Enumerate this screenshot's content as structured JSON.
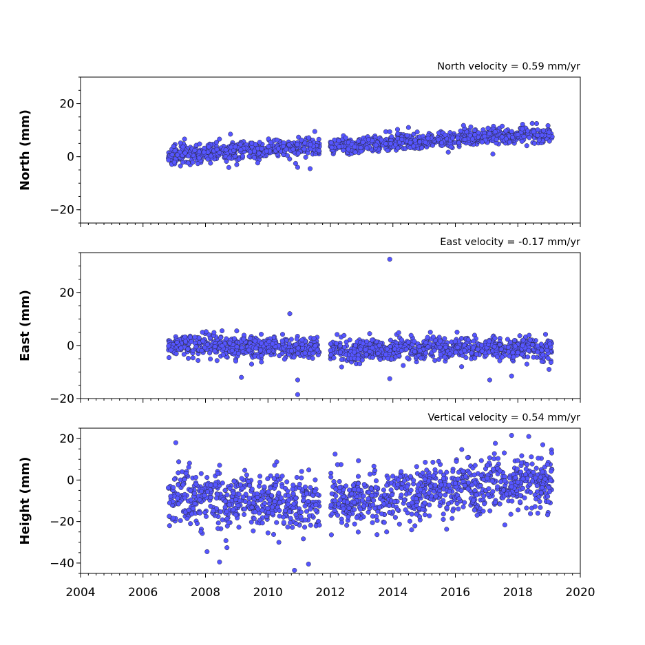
{
  "chart_data": [
    {
      "type": "scatter",
      "ylabel": "North (mm)",
      "annotation": "North velocity = 0.59 mm/yr",
      "xlim": [
        2004,
        2020
      ],
      "ylim": [
        -25,
        30
      ],
      "yticks": [
        -20,
        0,
        20
      ],
      "yticks_minor_step": 5,
      "xticks_shown": false,
      "segments": [
        {
          "start": 2006.8,
          "end": 2011.65,
          "base_start": 0.5,
          "base_end": 4.0,
          "spread": 1.6,
          "count": 520
        },
        {
          "start": 2012.0,
          "end": 2019.1,
          "base_start": 4.0,
          "base_end": 8.8,
          "spread": 1.5,
          "count": 760
        }
      ],
      "outliers": [
        {
          "x": 2008.8,
          "y": 8.5
        },
        {
          "x": 2011.5,
          "y": 9.5
        },
        {
          "x": 2010.95,
          "y": -4.0
        },
        {
          "x": 2011.35,
          "y": -4.5
        },
        {
          "x": 2014.5,
          "y": 11.0
        },
        {
          "x": 2017.5,
          "y": 11.5
        },
        {
          "x": 2018.6,
          "y": 12.5
        },
        {
          "x": 2007.2,
          "y": -3.5
        },
        {
          "x": 2009.0,
          "y": -3.0
        },
        {
          "x": 2017.2,
          "y": 1.0
        }
      ],
      "series": [
        {
          "name": "",
          "color": "#5555ff"
        }
      ]
    },
    {
      "type": "scatter",
      "ylabel": "East (mm)",
      "annotation": "East velocity = -0.17 mm/yr",
      "xlim": [
        2004,
        2020
      ],
      "ylim": [
        -20,
        35
      ],
      "yticks": [
        -20,
        0,
        20
      ],
      "yticks_minor_step": 5,
      "xticks_shown": false,
      "segments": [
        {
          "start": 2006.8,
          "end": 2011.65,
          "base_start": 0.3,
          "base_end": -1.2,
          "spread": 2.2,
          "count": 520
        },
        {
          "start": 2012.0,
          "end": 2019.1,
          "base_start": -1.8,
          "base_end": -1.0,
          "spread": 2.1,
          "count": 760
        }
      ],
      "outliers": [
        {
          "x": 2013.9,
          "y": 32.5
        },
        {
          "x": 2010.7,
          "y": 12.0
        },
        {
          "x": 2010.95,
          "y": -18.5
        },
        {
          "x": 2010.95,
          "y": -13.0
        },
        {
          "x": 2009.15,
          "y": -12.0
        },
        {
          "x": 2013.9,
          "y": -12.5
        },
        {
          "x": 2017.1,
          "y": -13.0
        },
        {
          "x": 2017.8,
          "y": -11.5
        },
        {
          "x": 2015.2,
          "y": 5.0
        },
        {
          "x": 2009.0,
          "y": 5.5
        },
        {
          "x": 2019.0,
          "y": -9.0
        },
        {
          "x": 2016.2,
          "y": -8.0
        }
      ],
      "series": [
        {
          "name": "",
          "color": "#5555ff"
        }
      ]
    },
    {
      "type": "scatter",
      "ylabel": "Height (mm)",
      "annotation": "Vertical velocity = 0.54 mm/yr",
      "xlabel": "",
      "xlim": [
        2004,
        2020
      ],
      "ylim": [
        -45,
        25
      ],
      "yticks": [
        -40,
        -20,
        0,
        20
      ],
      "yticks_minor_step": 5,
      "xticks": [
        2004,
        2006,
        2008,
        2010,
        2012,
        2014,
        2016,
        2018,
        2020
      ],
      "xticks_minor_step": 0.25,
      "xticks_shown": true,
      "segments": [
        {
          "start": 2006.8,
          "end": 2011.65,
          "base_start": -7.0,
          "base_end": -12.0,
          "spread": 6.5,
          "count": 560
        },
        {
          "start": 2012.0,
          "end": 2019.1,
          "base_start": -10.0,
          "base_end": 0.0,
          "spread": 6.5,
          "count": 780
        }
      ],
      "outliers": [
        {
          "x": 2007.05,
          "y": 18.0
        },
        {
          "x": 2008.05,
          "y": -34.5
        },
        {
          "x": 2008.45,
          "y": -39.5
        },
        {
          "x": 2010.85,
          "y": -43.5
        },
        {
          "x": 2011.3,
          "y": -40.5
        },
        {
          "x": 2017.8,
          "y": 21.5
        },
        {
          "x": 2018.35,
          "y": 21.0
        },
        {
          "x": 2018.8,
          "y": 17.0
        },
        {
          "x": 2012.15,
          "y": 12.5
        },
        {
          "x": 2013.8,
          "y": -25.0
        },
        {
          "x": 2014.6,
          "y": -24.0
        },
        {
          "x": 2010.35,
          "y": -30.0
        },
        {
          "x": 2006.85,
          "y": -22.0
        }
      ],
      "series": [
        {
          "name": "",
          "color": "#5555ff"
        }
      ]
    }
  ]
}
